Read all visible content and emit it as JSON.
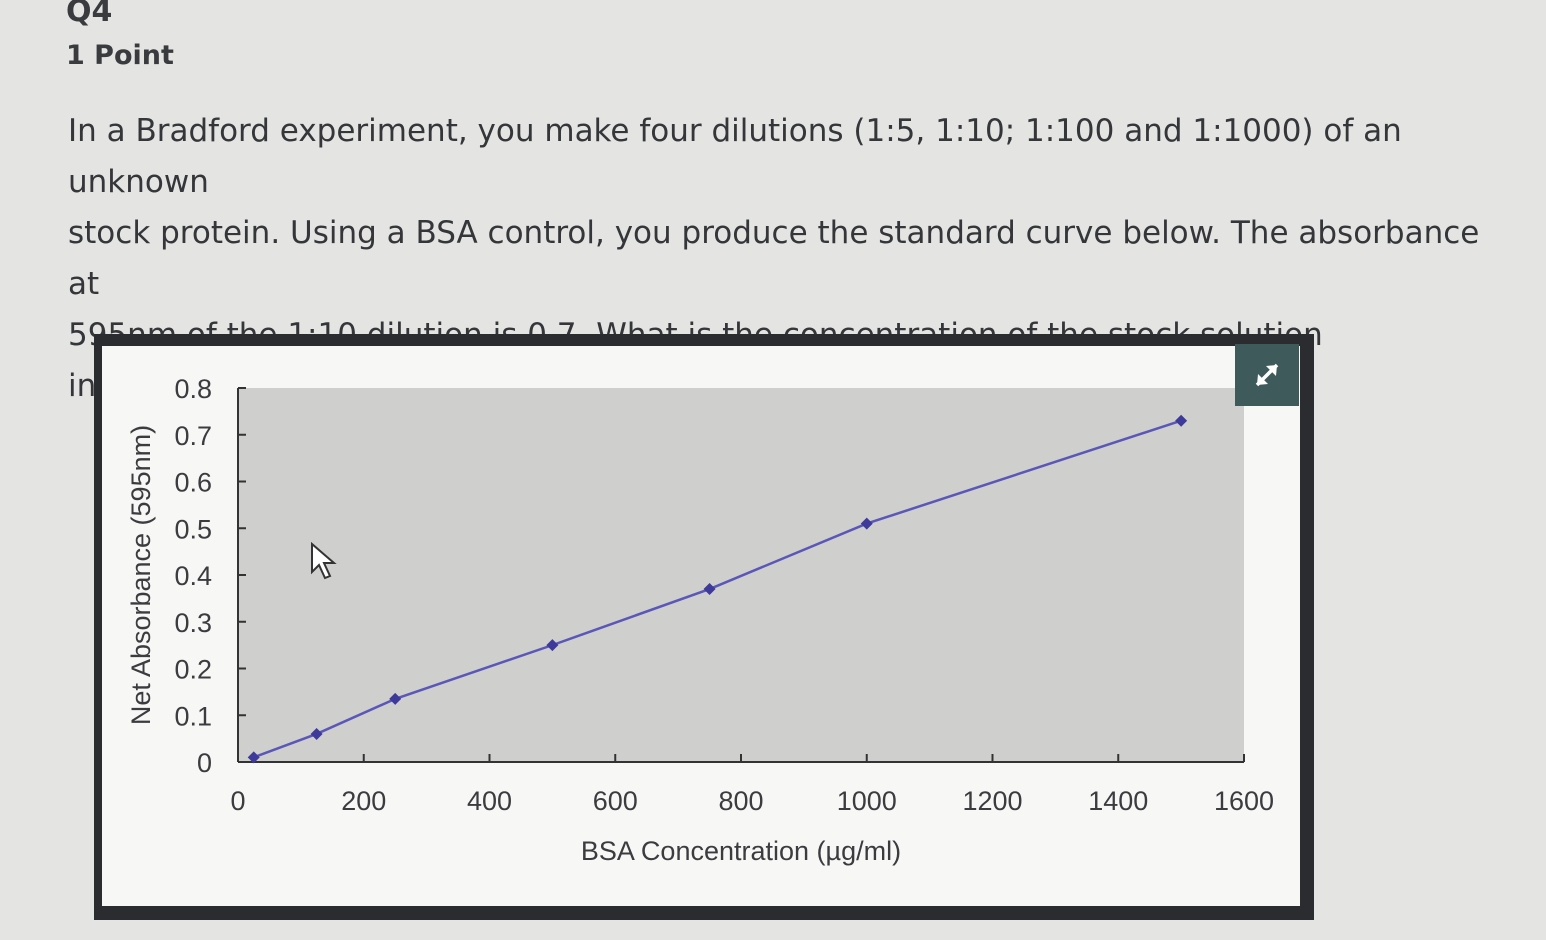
{
  "question": {
    "number": "Q4",
    "points": "1 Point",
    "text": "In a Bradford experiment, you make four dilutions (1:5, 1:10; 1:100 and 1:1000) of an unknown\nstock protein. Using a BSA control, you produce the standard curve below. The absorbance at\n595nm of the 1:10 dilution is 0.7. What is the concentration of the stock solution\nin mg/ml?"
  },
  "expand_icon": "expand-arrows-icon",
  "colors": {
    "line": "#5a57b8",
    "plot_bg": "#cfcfcd",
    "frame": "#2b2c2f",
    "expand_bg": "#3f5a5a"
  },
  "chart_data": {
    "type": "line",
    "xlabel": "BSA Concentration (µg/ml)",
    "ylabel": "Net Absorbance (595nm)",
    "xlim": [
      0,
      1600
    ],
    "ylim": [
      0,
      0.8
    ],
    "x_ticks": [
      "0",
      "200",
      "400",
      "600",
      "800",
      "1000",
      "1200",
      "1400",
      "1600"
    ],
    "y_ticks": [
      "0",
      "0.1",
      "0.2",
      "0.3",
      "0.4",
      "0.5",
      "0.6",
      "0.7",
      "0.8"
    ],
    "grid": false,
    "series": [
      {
        "x": [
          25,
          125,
          250,
          500,
          750,
          1000,
          1500
        ],
        "y": [
          0.01,
          0.06,
          0.135,
          0.25,
          0.37,
          0.51,
          0.73
        ]
      }
    ]
  }
}
